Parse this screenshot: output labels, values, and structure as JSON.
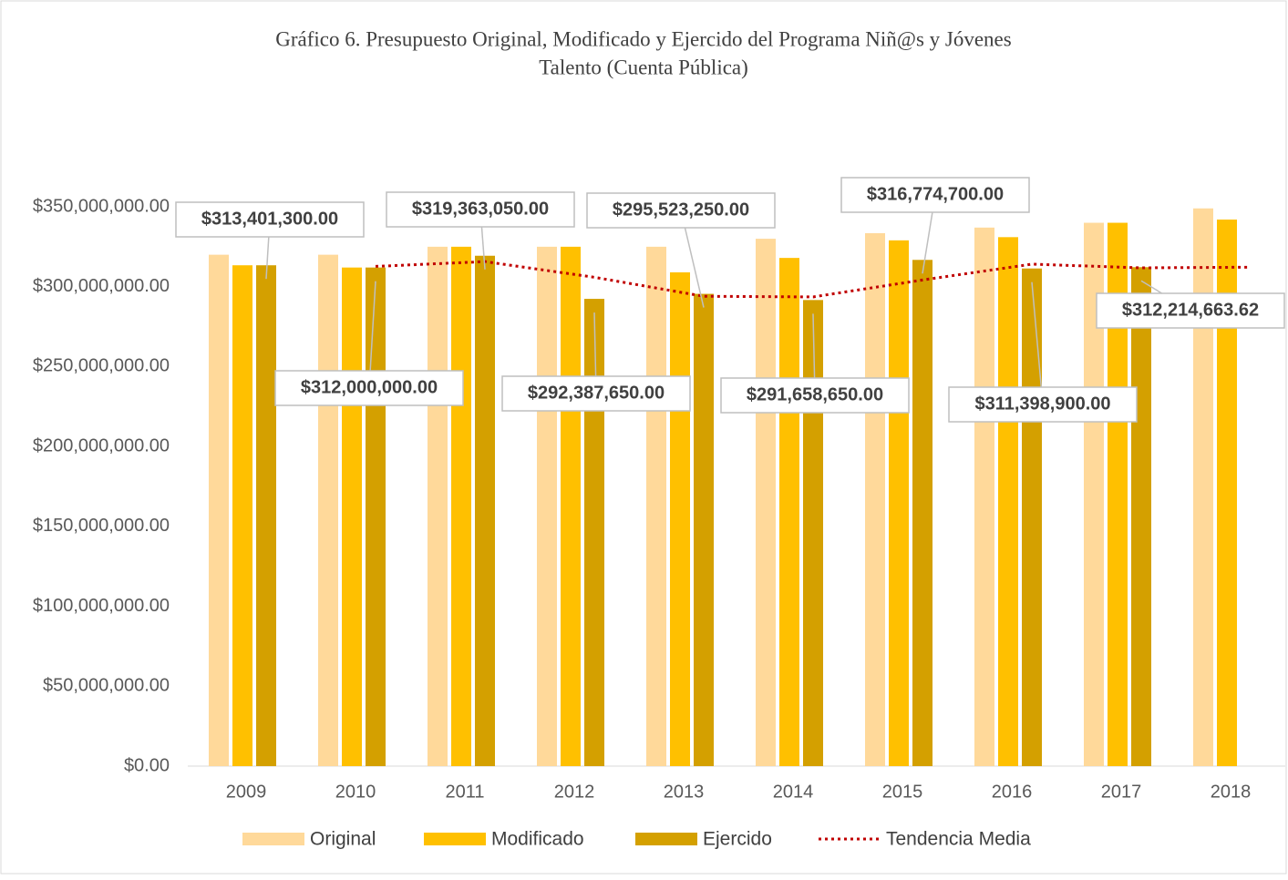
{
  "chart_data": {
    "type": "bar",
    "title": [
      "Gráfico 6. Presupuesto Original, Modificado y Ejercido del Programa Niñ@s y Jóvenes",
      "Talento  (Cuenta Pública)"
    ],
    "categories": [
      "2009",
      "2010",
      "2011",
      "2012",
      "2013",
      "2014",
      "2015",
      "2016",
      "2017",
      "2018"
    ],
    "series": [
      {
        "name": "Original",
        "color": "#ffd99a",
        "values": [
          320000000,
          320000000,
          325000000,
          325000000,
          325000000,
          330000000,
          333500000,
          337000000,
          340000000,
          349000000
        ]
      },
      {
        "name": "Modificado",
        "color": "#ffc000",
        "values": [
          313401300,
          312000000,
          325000000,
          325000000,
          309000000,
          318000000,
          329000000,
          331000000,
          340000000,
          342000000
        ]
      },
      {
        "name": "Ejercido",
        "color": "#d4a000",
        "values": [
          313401300,
          312000000,
          319363050,
          292387650,
          295523250,
          291658650,
          316774700,
          311398900,
          312214663.62,
          null
        ],
        "value_labels": [
          "$313,401,300.00",
          "$312,000,000.00",
          "$319,363,050.00",
          "$292,387,650.00",
          "$295,523,250.00",
          "$291,658,650.00",
          "$316,774,700.00",
          "$311,398,900.00",
          "$312,214,663.62",
          null
        ]
      },
      {
        "name": "Tendencia Media",
        "type": "line",
        "color": "#c00000",
        "values": [
          null,
          312700000,
          315700000,
          305900000,
          294000000,
          293600000,
          304200000,
          314100000,
          311800000,
          312200000
        ]
      }
    ],
    "ylim": [
      0,
      350000000
    ],
    "yticks": [
      {
        "value": 0,
        "label": "$0.00"
      },
      {
        "value": 50000000,
        "label": "$50,000,000.00"
      },
      {
        "value": 100000000,
        "label": "$100,000,000.00"
      },
      {
        "value": 150000000,
        "label": "$150,000,000.00"
      },
      {
        "value": 200000000,
        "label": "$200,000,000.00"
      },
      {
        "value": 250000000,
        "label": "$250,000,000.00"
      },
      {
        "value": 300000000,
        "label": "$300,000,000.00"
      },
      {
        "value": 350000000,
        "label": "$350,000,000.00"
      }
    ],
    "grid": false,
    "legend": "bottom"
  }
}
